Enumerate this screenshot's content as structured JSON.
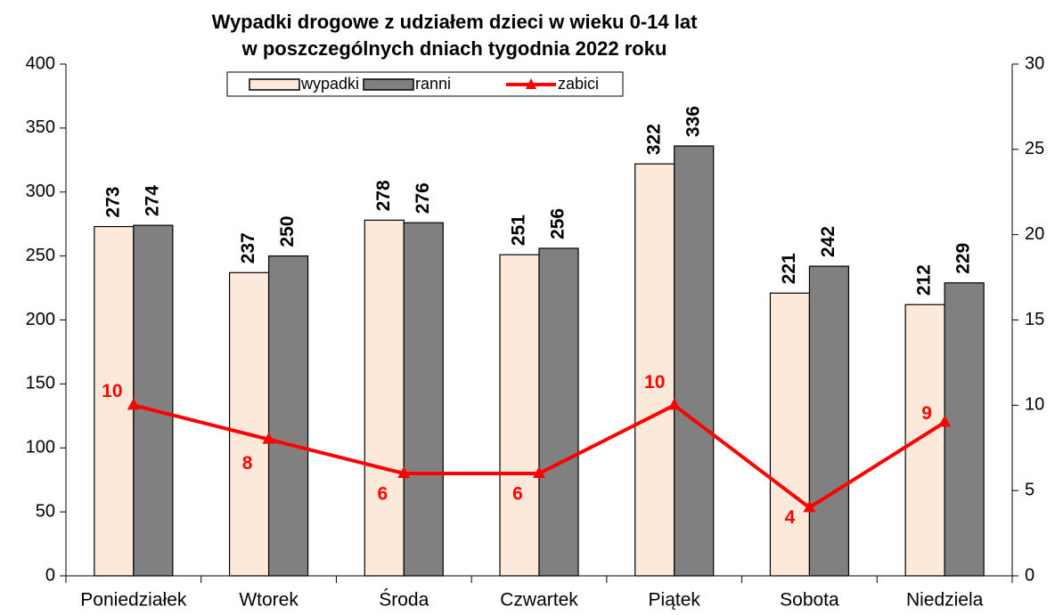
{
  "chart_data": {
    "type": "bar-line",
    "title": "Wypadki drogowe z udziałem dzieci w wieku 0-14 lat",
    "subtitle": "w poszczególnych dniach tygodnia 2022 roku",
    "categories": [
      "Poniedziałek",
      "Wtorek",
      "Środa",
      "Czwartek",
      "Piątek",
      "Sobota",
      "Niedziela"
    ],
    "series": [
      {
        "name": "wypadki",
        "type": "bar",
        "color": "#fde9d9",
        "values": [
          273,
          237,
          278,
          251,
          322,
          221,
          212
        ]
      },
      {
        "name": "ranni",
        "type": "bar",
        "color": "#808080",
        "values": [
          274,
          250,
          276,
          256,
          336,
          242,
          229
        ]
      },
      {
        "name": "zabici",
        "type": "line",
        "axis": "y2",
        "color": "#ff0000",
        "values": [
          10,
          8,
          6,
          6,
          10,
          4,
          9
        ]
      }
    ],
    "ylim": [
      0,
      400
    ],
    "yticks": [
      0,
      50,
      100,
      150,
      200,
      250,
      300,
      350,
      400
    ],
    "y2lim": [
      0,
      30
    ],
    "y2ticks": [
      0,
      5,
      10,
      15,
      20,
      25,
      30
    ],
    "grid": false,
    "legend": "top"
  }
}
